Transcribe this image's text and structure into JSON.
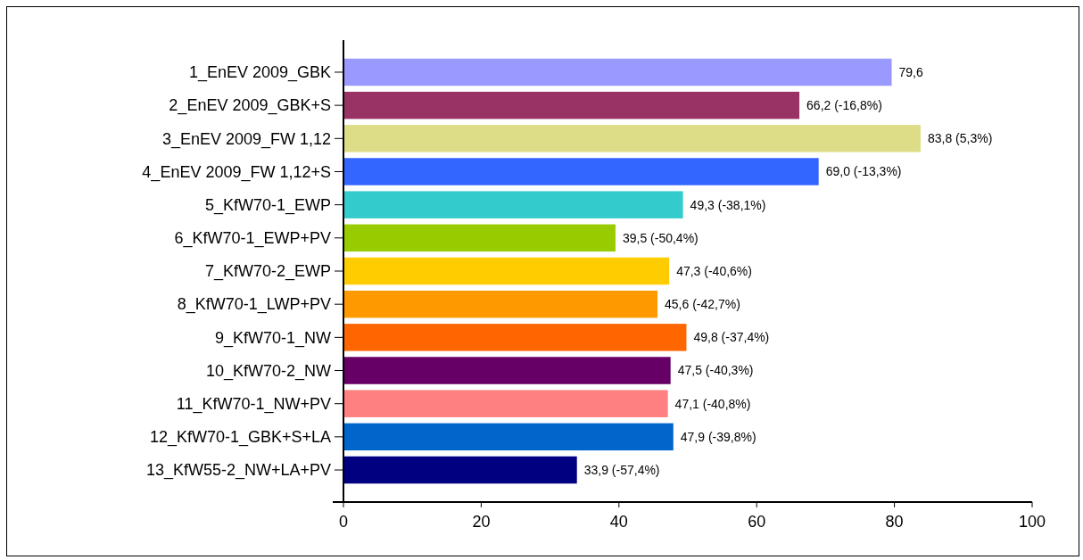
{
  "chart_data": {
    "type": "bar",
    "orientation": "horizontal",
    "categories": [
      "1_EnEV 2009_GBK",
      "2_EnEV 2009_GBK+S",
      "3_EnEV 2009_FW 1,12",
      "4_EnEV 2009_FW 1,12+S",
      "5_KfW70-1_EWP",
      "6_KfW70-1_EWP+PV",
      "7_KfW70-2_EWP",
      "8_KfW70-1_LWP+PV",
      "9_KfW70-1_NW",
      "10_KfW70-2_NW",
      "11_KfW70-1_NW+PV",
      "12_KfW70-1_GBK+S+LA",
      "13_KfW55-2_NW+LA+PV"
    ],
    "values": [
      79.6,
      66.2,
      83.8,
      69.0,
      49.3,
      39.5,
      47.3,
      45.6,
      49.8,
      47.5,
      47.1,
      47.9,
      33.9
    ],
    "colors": [
      "#9999ff",
      "#993366",
      "#dddd88",
      "#3366ff",
      "#33cccc",
      "#99cc00",
      "#ffcc00",
      "#ff9900",
      "#ff6600",
      "#660066",
      "#ff8080",
      "#0066cc",
      "#000080"
    ],
    "value_labels": [
      "79,6",
      "66,2 (-16,8%)",
      "83,8 (5,3%)",
      "69,0 (-13,3%)",
      "49,3 (-38,1%)",
      "39,5 (-50,4%)",
      "47,3 (-40,6%)",
      "45,6 (-42,7%)",
      "49,8 (-37,4%)",
      "47,5 (-40,3%)",
      "47,1 (-40,8%)",
      "47,9 (-39,8%)",
      "33,9 (-57,4%)"
    ],
    "xlim": [
      0,
      100
    ],
    "xticks": [
      0,
      20,
      40,
      60,
      80,
      100
    ]
  }
}
